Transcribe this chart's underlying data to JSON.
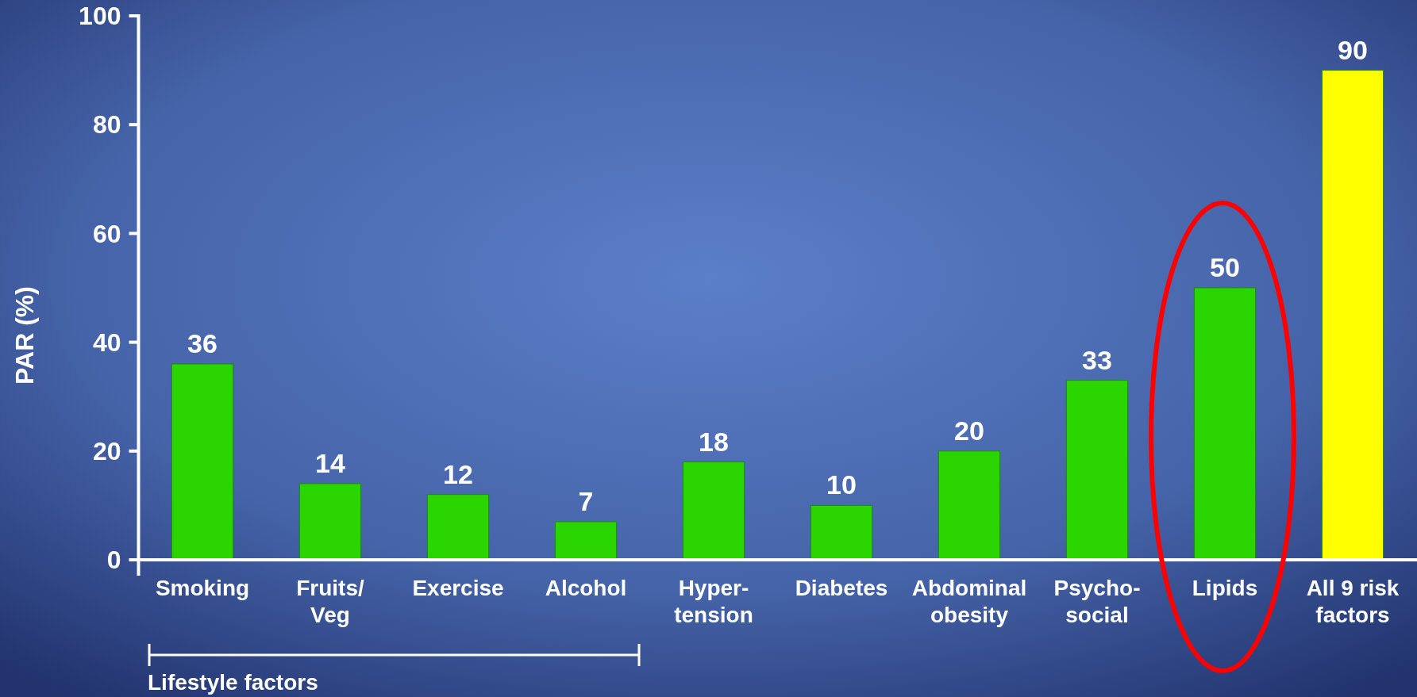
{
  "chart_data": {
    "type": "bar",
    "ylabel": "PAR (%)",
    "categories": [
      "Smoking",
      "Fruits/\nVeg",
      "Exercise",
      "Alcohol",
      "Hyper-\ntension",
      "Diabetes",
      "Abdominal\nobesity",
      "Psycho-\nsocial",
      "Lipids",
      "All 9 risk\nfactors"
    ],
    "values": [
      36,
      14,
      12,
      7,
      18,
      10,
      20,
      33,
      50,
      90
    ],
    "colors": [
      "#2bd600",
      "#2bd600",
      "#2bd600",
      "#2bd600",
      "#2bd600",
      "#2bd600",
      "#2bd600",
      "#2bd600",
      "#2bd600",
      "#ffff00"
    ],
    "ylim": [
      0,
      100
    ],
    "yticks": [
      0,
      20,
      40,
      60,
      80,
      100
    ],
    "grid": false,
    "data_labels": true,
    "annotations": [
      "Lifestyle factors"
    ]
  }
}
